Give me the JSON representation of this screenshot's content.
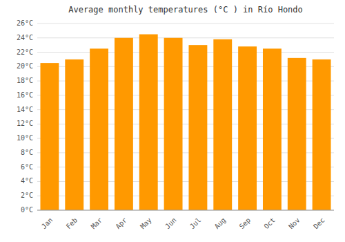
{
  "chart_data": {
    "type": "bar",
    "title": "Average monthly temperatures (°C ) in Río Hondo",
    "categories": [
      "Jan",
      "Feb",
      "Mar",
      "Apr",
      "May",
      "Jun",
      "Jul",
      "Aug",
      "Sep",
      "Oct",
      "Nov",
      "Dec"
    ],
    "values": [
      20.5,
      21.0,
      22.5,
      24.0,
      24.5,
      24.0,
      23.0,
      23.8,
      22.8,
      22.5,
      21.2,
      21.0
    ],
    "color": "#FF9900",
    "ylim": [
      0,
      26
    ],
    "yticks": [
      {
        "value": 0,
        "label": "0°C"
      },
      {
        "value": 2,
        "label": "2°C"
      },
      {
        "value": 4,
        "label": "4°C"
      },
      {
        "value": 6,
        "label": "6°C"
      },
      {
        "value": 8,
        "label": "8°C"
      },
      {
        "value": 10,
        "label": "10°C"
      },
      {
        "value": 12,
        "label": "12°C"
      },
      {
        "value": 14,
        "label": "14°C"
      },
      {
        "value": 16,
        "label": "16°C"
      },
      {
        "value": 18,
        "label": "18°C"
      },
      {
        "value": 20,
        "label": "20°C"
      },
      {
        "value": 22,
        "label": "22°C"
      },
      {
        "value": 24,
        "label": "24°C"
      },
      {
        "value": 26,
        "label": "26°C"
      }
    ],
    "grid": true
  }
}
